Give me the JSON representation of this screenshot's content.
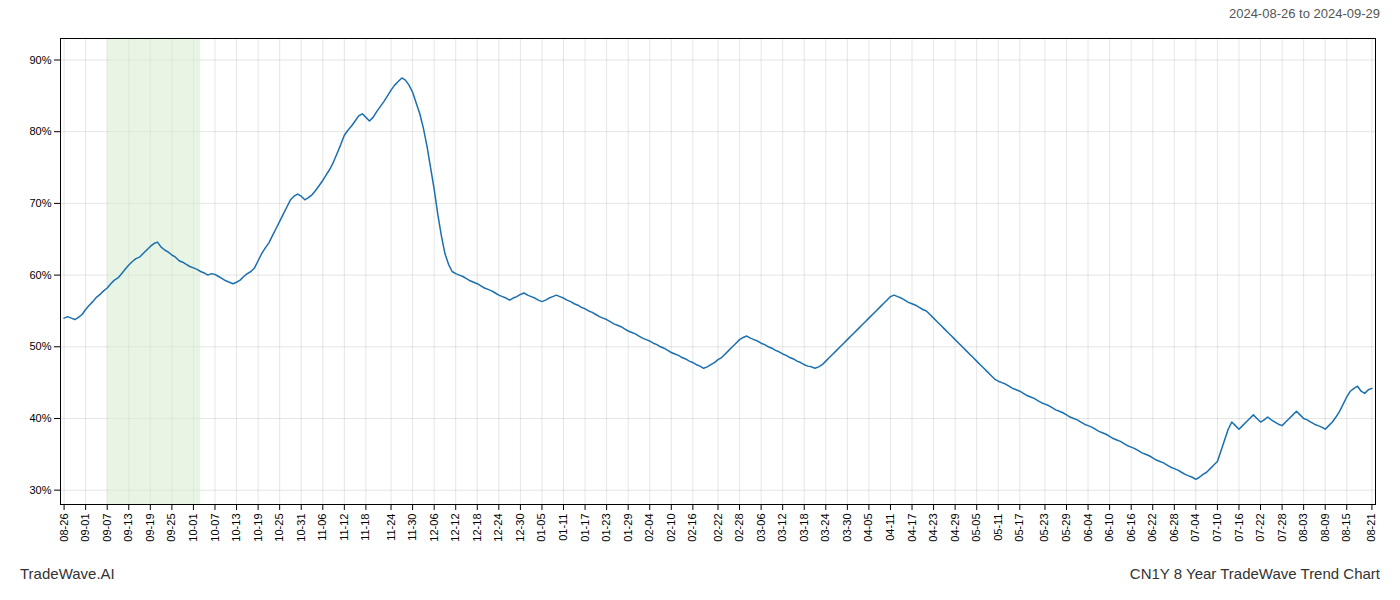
{
  "chart_data": {
    "type": "line",
    "title": "CN1Y 8 Year TradeWave Trend Chart",
    "subtitle": "2024-08-26 to 2024-09-29",
    "annotations": [
      {
        "text": "TradeWave.AI"
      }
    ],
    "color": "#1a6faf",
    "grid": true,
    "ylim": [
      28,
      93
    ],
    "yticks": [
      {
        "value": 30,
        "label": "30%"
      },
      {
        "value": 40,
        "label": "40%"
      },
      {
        "value": 50,
        "label": "50%"
      },
      {
        "value": 60,
        "label": "60%"
      },
      {
        "value": 70,
        "label": "70%"
      },
      {
        "value": 80,
        "label": "80%"
      },
      {
        "value": 90,
        "label": "90%"
      }
    ],
    "highlight": {
      "start": 12,
      "end": 38,
      "color": "#d6edcf"
    },
    "categories": [
      "08-26",
      null,
      null,
      null,
      null,
      null,
      "09-01",
      null,
      null,
      null,
      null,
      null,
      "09-07",
      null,
      null,
      null,
      null,
      null,
      "09-13",
      null,
      null,
      null,
      null,
      null,
      "09-19",
      null,
      null,
      null,
      null,
      null,
      "09-25",
      null,
      null,
      null,
      null,
      null,
      "10-01",
      null,
      null,
      null,
      null,
      null,
      "10-07",
      null,
      null,
      null,
      null,
      null,
      "10-13",
      null,
      null,
      null,
      null,
      null,
      "10-19",
      null,
      null,
      null,
      null,
      null,
      "10-25",
      null,
      null,
      null,
      null,
      null,
      "10-31",
      null,
      null,
      null,
      null,
      null,
      "11-06",
      null,
      null,
      null,
      null,
      null,
      "11-12",
      null,
      null,
      null,
      null,
      null,
      "11-18",
      null,
      null,
      null,
      null,
      null,
      null,
      "11-24",
      null,
      null,
      null,
      null,
      null,
      "11-30",
      null,
      null,
      null,
      null,
      null,
      "12-06",
      null,
      null,
      null,
      null,
      null,
      "12-12",
      null,
      null,
      null,
      null,
      null,
      "12-18",
      null,
      null,
      null,
      null,
      null,
      "12-24",
      null,
      null,
      null,
      null,
      null,
      "12-30",
      null,
      null,
      null,
      null,
      null,
      "01-05",
      null,
      null,
      null,
      null,
      null,
      "01-11",
      null,
      null,
      null,
      null,
      null,
      "01-17",
      null,
      null,
      null,
      null,
      null,
      "01-23",
      null,
      null,
      null,
      null,
      null,
      "01-29",
      null,
      null,
      null,
      null,
      null,
      "02-04",
      null,
      null,
      null,
      null,
      null,
      "02-10",
      null,
      null,
      null,
      null,
      null,
      "02-16",
      null,
      null,
      null,
      null,
      null,
      null,
      "02-22",
      null,
      null,
      null,
      null,
      null,
      "02-28",
      null,
      null,
      null,
      null,
      null,
      "03-06",
      null,
      null,
      null,
      null,
      null,
      "03-12",
      null,
      null,
      null,
      null,
      null,
      "03-18",
      null,
      null,
      null,
      null,
      null,
      "03-24",
      null,
      null,
      null,
      null,
      null,
      "03-30",
      null,
      null,
      null,
      null,
      null,
      "04-05",
      null,
      null,
      null,
      null,
      null,
      "04-11",
      null,
      null,
      null,
      null,
      null,
      "04-17",
      null,
      null,
      null,
      null,
      null,
      "04-23",
      null,
      null,
      null,
      null,
      null,
      "04-29",
      null,
      null,
      null,
      null,
      null,
      "05-05",
      null,
      null,
      null,
      null,
      null,
      "05-11",
      null,
      null,
      null,
      null,
      null,
      "05-17",
      null,
      null,
      null,
      null,
      null,
      null,
      "05-23",
      null,
      null,
      null,
      null,
      null,
      "05-29",
      null,
      null,
      null,
      null,
      null,
      "06-04",
      null,
      null,
      null,
      null,
      null,
      "06-10",
      null,
      null,
      null,
      null,
      null,
      "06-16",
      null,
      null,
      null,
      null,
      null,
      "06-22",
      null,
      null,
      null,
      null,
      null,
      "06-28",
      null,
      null,
      null,
      null,
      null,
      "07-04",
      null,
      null,
      null,
      null,
      null,
      "07-10",
      null,
      null,
      null,
      null,
      null,
      "07-16",
      null,
      null,
      null,
      null,
      null,
      "07-22",
      null,
      null,
      null,
      null,
      null,
      "07-28",
      null,
      null,
      null,
      null,
      null,
      "08-03",
      null,
      null,
      null,
      null,
      null,
      "08-09",
      null,
      null,
      null,
      null,
      null,
      "08-15",
      null,
      null,
      null,
      null,
      null,
      null,
      "08-21"
    ],
    "values": [
      54.0,
      54.2,
      54.0,
      53.8,
      54.1,
      54.5,
      55.2,
      55.8,
      56.3,
      56.9,
      57.3,
      57.8,
      58.2,
      58.8,
      59.3,
      59.6,
      60.2,
      60.8,
      61.4,
      61.9,
      62.3,
      62.5,
      63.0,
      63.5,
      64.0,
      64.4,
      64.6,
      63.9,
      63.5,
      63.2,
      62.8,
      62.5,
      62.0,
      61.8,
      61.5,
      61.2,
      61.0,
      60.8,
      60.5,
      60.3,
      60.0,
      60.2,
      60.1,
      59.8,
      59.5,
      59.2,
      59.0,
      58.8,
      59.0,
      59.3,
      59.8,
      60.2,
      60.5,
      61.0,
      62.0,
      63.0,
      63.8,
      64.5,
      65.5,
      66.5,
      67.5,
      68.5,
      69.5,
      70.5,
      71.0,
      71.3,
      71.0,
      70.5,
      70.8,
      71.2,
      71.8,
      72.5,
      73.2,
      74.0,
      74.8,
      75.8,
      77.0,
      78.2,
      79.5,
      80.2,
      80.8,
      81.5,
      82.2,
      82.5,
      82.0,
      81.5,
      82.0,
      82.8,
      83.5,
      84.2,
      85.0,
      85.8,
      86.5,
      87.0,
      87.5,
      87.2,
      86.5,
      85.5,
      84.0,
      82.5,
      80.5,
      78.0,
      75.0,
      72.0,
      68.5,
      65.5,
      63.0,
      61.5,
      60.5,
      60.2,
      60.0,
      59.8,
      59.5,
      59.2,
      59.0,
      58.8,
      58.5,
      58.2,
      58.0,
      57.8,
      57.5,
      57.2,
      57.0,
      56.8,
      56.5,
      56.8,
      57.0,
      57.3,
      57.5,
      57.2,
      57.0,
      56.8,
      56.5,
      56.3,
      56.5,
      56.8,
      57.0,
      57.2,
      57.0,
      56.8,
      56.5,
      56.3,
      56.0,
      55.8,
      55.5,
      55.3,
      55.0,
      54.8,
      54.5,
      54.2,
      54.0,
      53.8,
      53.5,
      53.2,
      53.0,
      52.8,
      52.5,
      52.2,
      52.0,
      51.8,
      51.5,
      51.2,
      51.0,
      50.8,
      50.5,
      50.3,
      50.0,
      49.8,
      49.5,
      49.2,
      49.0,
      48.8,
      48.5,
      48.3,
      48.0,
      47.8,
      47.5,
      47.3,
      47.0,
      47.2,
      47.5,
      47.8,
      48.2,
      48.5,
      49.0,
      49.5,
      50.0,
      50.5,
      51.0,
      51.3,
      51.5,
      51.2,
      51.0,
      50.8,
      50.5,
      50.3,
      50.0,
      49.8,
      49.5,
      49.3,
      49.0,
      48.8,
      48.5,
      48.3,
      48.0,
      47.8,
      47.5,
      47.3,
      47.2,
      47.0,
      47.2,
      47.5,
      48.0,
      48.5,
      49.0,
      49.5,
      50.0,
      50.5,
      51.0,
      51.5,
      52.0,
      52.5,
      53.0,
      53.5,
      54.0,
      54.5,
      55.0,
      55.5,
      56.0,
      56.5,
      57.0,
      57.2,
      57.0,
      56.8,
      56.5,
      56.2,
      56.0,
      55.8,
      55.5,
      55.2,
      55.0,
      54.5,
      54.0,
      53.5,
      53.0,
      52.5,
      52.0,
      51.5,
      51.0,
      50.5,
      50.0,
      49.5,
      49.0,
      48.5,
      48.0,
      47.5,
      47.0,
      46.5,
      46.0,
      45.5,
      45.2,
      45.0,
      44.8,
      44.5,
      44.2,
      44.0,
      43.8,
      43.5,
      43.2,
      43.0,
      42.8,
      42.5,
      42.2,
      42.0,
      41.8,
      41.5,
      41.2,
      41.0,
      40.8,
      40.5,
      40.2,
      40.0,
      39.8,
      39.5,
      39.2,
      39.0,
      38.8,
      38.5,
      38.2,
      38.0,
      37.8,
      37.5,
      37.2,
      37.0,
      36.8,
      36.5,
      36.2,
      36.0,
      35.8,
      35.5,
      35.2,
      35.0,
      34.8,
      34.5,
      34.2,
      34.0,
      33.8,
      33.5,
      33.2,
      33.0,
      32.8,
      32.5,
      32.2,
      32.0,
      31.8,
      31.5,
      31.8,
      32.2,
      32.5,
      33.0,
      33.5,
      34.0,
      35.5,
      37.0,
      38.5,
      39.5,
      39.0,
      38.5,
      39.0,
      39.5,
      40.0,
      40.5,
      40.0,
      39.5,
      39.8,
      40.2,
      39.8,
      39.5,
      39.2,
      39.0,
      39.5,
      40.0,
      40.5,
      41.0,
      40.5,
      40.0,
      39.8,
      39.5,
      39.2,
      39.0,
      38.8,
      38.5,
      39.0,
      39.5,
      40.2,
      41.0,
      42.0,
      43.0,
      43.8,
      44.2,
      44.5,
      43.8,
      43.5,
      44.0,
      44.2
    ]
  }
}
